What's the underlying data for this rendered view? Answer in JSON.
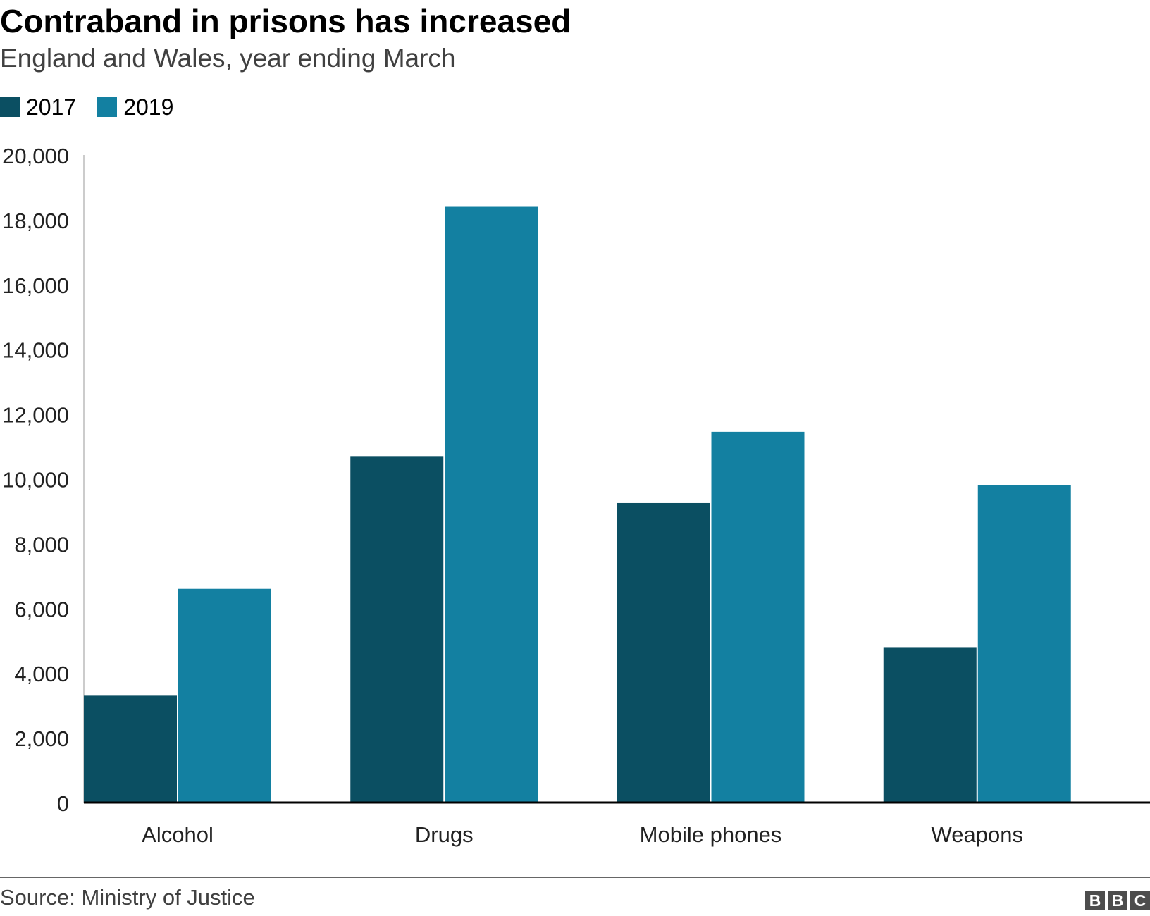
{
  "title": "Contraband in prisons has increased",
  "subtitle": "England and Wales, year ending March",
  "source": "Source: Ministry of Justice",
  "logo": [
    "B",
    "B",
    "C"
  ],
  "colors": {
    "2017": "#0b4f62",
    "2019": "#1380a1",
    "axis": "#000000",
    "gridline": "#cccccc"
  },
  "chart_data": {
    "type": "bar",
    "categories": [
      "Alcohol",
      "Drugs",
      "Mobile phones",
      "Weapons"
    ],
    "series": [
      {
        "name": "2017",
        "values": [
          3300,
          10700,
          9250,
          4800
        ],
        "color": "#0b4f62"
      },
      {
        "name": "2019",
        "values": [
          6600,
          18400,
          11450,
          9800
        ],
        "color": "#1380a1"
      }
    ],
    "ylim": [
      0,
      20000
    ],
    "yticks": [
      0,
      2000,
      4000,
      6000,
      8000,
      10000,
      12000,
      14000,
      16000,
      18000,
      20000
    ],
    "ytick_labels": [
      "0",
      "2,000",
      "4,000",
      "6,000",
      "8,000",
      "10,000",
      "12,000",
      "14,000",
      "16,000",
      "18,000",
      "20,000"
    ],
    "grid": false,
    "legend": "top-left"
  }
}
